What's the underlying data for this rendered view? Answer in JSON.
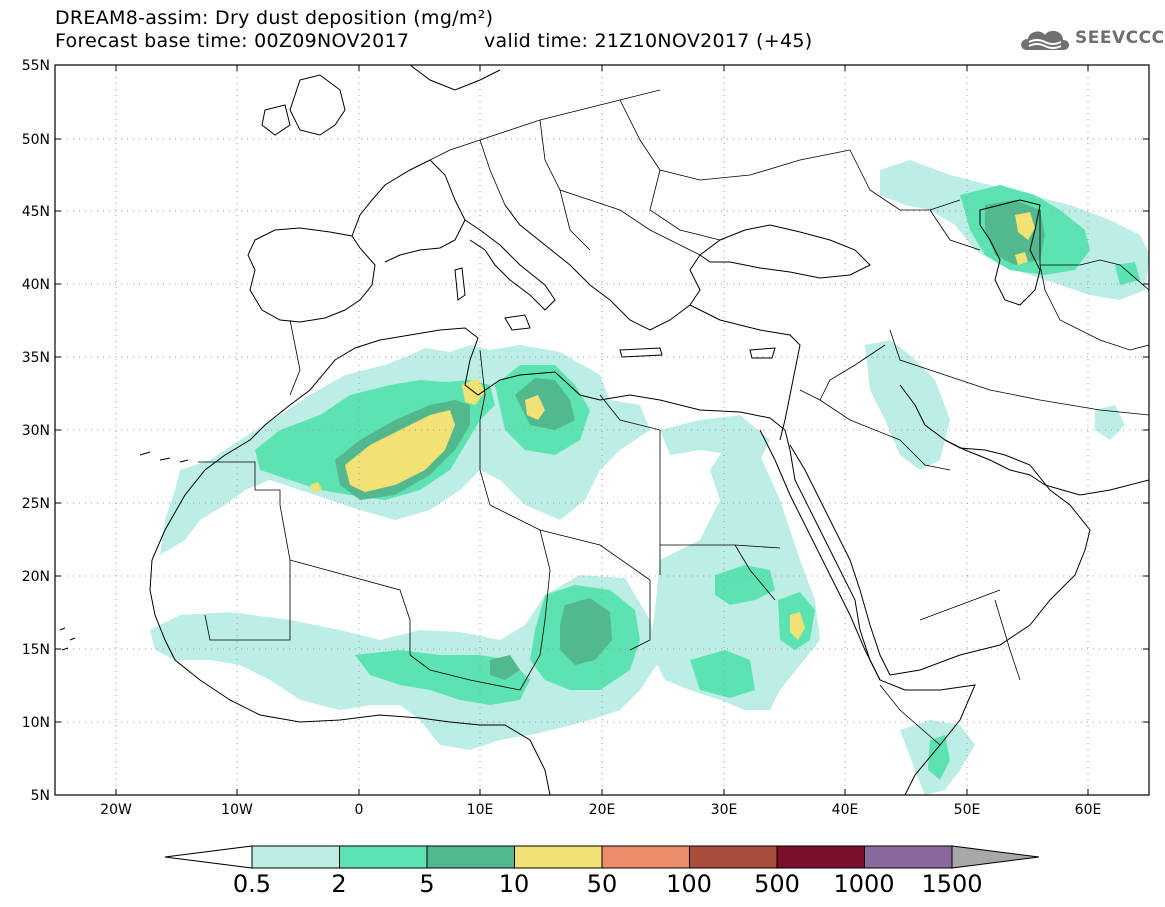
{
  "header": {
    "title": "DREAM8-assim: Dry dust deposition (mg/m²)",
    "base_time": "Forecast base time: 00Z09NOV2017",
    "valid_time": "valid time: 21Z10NOV2017 (+45)"
  },
  "logo": {
    "text": "SEEVCCC",
    "icon": "cloud-logo-icon"
  },
  "map": {
    "y_ticks": [
      "55N",
      "50N",
      "45N",
      "40N",
      "35N",
      "30N",
      "25N",
      "20N",
      "15N",
      "10N",
      "5N"
    ],
    "x_ticks": [
      "20W",
      "10W",
      "0",
      "10E",
      "20E",
      "30E",
      "40E",
      "50E",
      "60E"
    ],
    "lon_range": [
      -25,
      65
    ],
    "lat_range": [
      5,
      55
    ],
    "grid": "dotted"
  },
  "colorbar": {
    "labels": [
      "0.5",
      "2",
      "5",
      "10",
      "50",
      "100",
      "500",
      "1000",
      "1500"
    ],
    "colors": [
      "#bdeee6",
      "#5de3b2",
      "#52b88e",
      "#f2e275",
      "#eb8d6a",
      "#a84d3c",
      "#7a0f2a",
      "#8a6a9e"
    ],
    "under_color": "#ffffff",
    "over_color": "#a8a8a8"
  }
}
